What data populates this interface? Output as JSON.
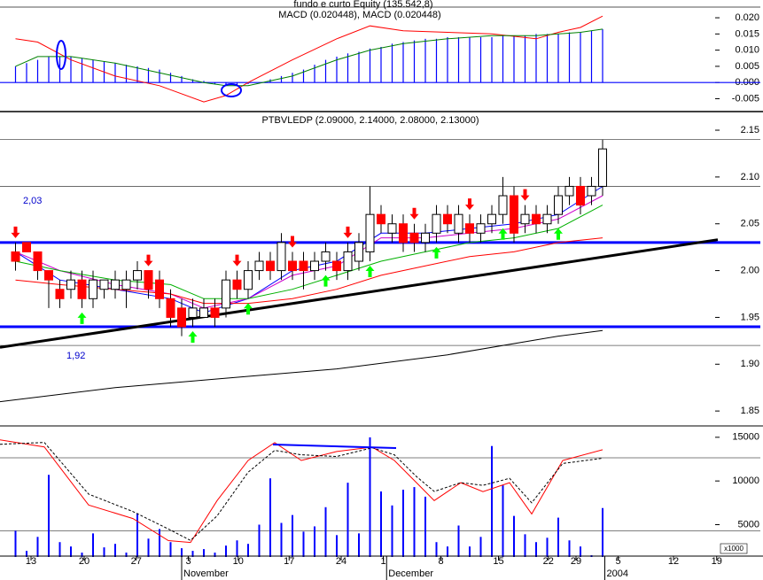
{
  "chart_data": [
    {
      "type": "macd",
      "title": "fundo e curto Equity (135.542,8)",
      "subtitle": "MACD (0.020448), MACD (0.020448)",
      "ylim": [
        -0.0087,
        0.0233
      ],
      "yticks": [
        {
          "value": 0.02,
          "label": "0.020"
        },
        0.015,
        {
          "value": 0.01,
          "label": "0.010"
        },
        0.005,
        {
          "value": 0,
          "label": "0.000"
        },
        -0.005
      ],
      "color": "#0000ff",
      "x": [
        1,
        2,
        3,
        4,
        5,
        6,
        7,
        8,
        9,
        10,
        11,
        12,
        13,
        14,
        15,
        16,
        17,
        18,
        19,
        20,
        21,
        22,
        23,
        24,
        25,
        26,
        27,
        28,
        29,
        30,
        31,
        32,
        33,
        34,
        35,
        36,
        37,
        38,
        39,
        40,
        41,
        42,
        43,
        44,
        45,
        46,
        47,
        48,
        49,
        50,
        51,
        52,
        53,
        54
      ],
      "values": [
        0.005,
        0.006,
        0.007,
        0.008,
        0.008,
        0.008,
        0.0075,
        0.007,
        0.0065,
        0.006,
        0.0055,
        0.005,
        0.0045,
        0.004,
        0.003,
        0.002,
        0.001,
        0.0005,
        -0.0005,
        -0.001,
        -0.001,
        -0.0005,
        0,
        0.001,
        0.002,
        0.003,
        0.004,
        0.0055,
        0.007,
        0.008,
        0.009,
        0.0095,
        0.0105,
        0.011,
        0.012,
        0.0125,
        0.013,
        0.0135,
        0.0135,
        0.014,
        0.014,
        0.014,
        0.014,
        0.014,
        0.0145,
        0.0145,
        0.0145,
        0.015,
        0.015,
        0.015,
        0.0155,
        0.0155,
        0.016,
        0.0165
      ],
      "series": [
        {
          "color": "#ff0000",
          "x": [
            1,
            3,
            6,
            10,
            14,
            18,
            20,
            22,
            26,
            30,
            33,
            36,
            40,
            44,
            48,
            50,
            52,
            54
          ],
          "values": [
            0.0135,
            0.0125,
            0.007,
            0.002,
            -0.001,
            -0.006,
            -0.004,
            0,
            0.007,
            0.0135,
            0.0175,
            0.016,
            0.0155,
            0.015,
            0.0135,
            0.0155,
            0.017,
            0.0205
          ]
        },
        {
          "color": "#008000",
          "x": [
            1,
            3,
            6,
            10,
            14,
            18,
            20,
            22,
            26,
            30,
            33,
            36,
            40,
            44,
            48,
            50,
            52,
            54
          ],
          "values": [
            0.005,
            0.008,
            0.008,
            0.006,
            0.003,
            0,
            -0.001,
            -0.001,
            0.002,
            0.007,
            0.01,
            0.012,
            0.0135,
            0.0145,
            0.0145,
            0.015,
            0.0155,
            0.0165
          ]
        }
      ]
    },
    {
      "type": "candlestick",
      "title": "PTBVLEDP (2.09000, 2.14000, 2.08000, 2.13000)",
      "ylim": [
        1.835,
        2.168
      ],
      "yticks": [
        2.15,
        {
          "value": 2.1,
          "label": "2.10"
        },
        2.05,
        {
          "value": 2.0,
          "label": "2.00"
        },
        1.95,
        {
          "value": 1.9,
          "label": "1.90"
        },
        1.85
      ],
      "x": [
        1,
        2,
        3,
        4,
        5,
        6,
        7,
        8,
        9,
        10,
        11,
        12,
        13,
        14,
        15,
        16,
        17,
        18,
        19,
        20,
        21,
        22,
        23,
        24,
        25,
        26,
        27,
        28,
        29,
        30,
        31,
        32,
        33,
        34,
        35,
        36,
        37,
        38,
        39,
        40,
        41,
        42,
        43,
        44,
        45,
        46,
        47,
        48,
        49,
        50,
        51,
        52,
        53,
        54
      ],
      "open": [
        2.02,
        2.03,
        2.02,
        2.0,
        1.98,
        1.98,
        1.99,
        1.97,
        1.98,
        1.98,
        1.98,
        1.99,
        2.0,
        1.99,
        1.97,
        1.96,
        1.95,
        1.95,
        1.96,
        1.96,
        1.99,
        1.98,
        2.0,
        2.01,
        2.0,
        2.01,
        2.01,
        2.0,
        2.01,
        2.01,
        2.0,
        2.01,
        2.02,
        2.06,
        2.04,
        2.05,
        2.04,
        2.03,
        2.04,
        2.06,
        2.04,
        2.05,
        2.04,
        2.05,
        2.06,
        2.08,
        2.05,
        2.06,
        2.05,
        2.06,
        2.08,
        2.09,
        2.08,
        2.09
      ],
      "high": [
        2.03,
        2.03,
        2.02,
        2.0,
        1.99,
        2.0,
        2.0,
        2.0,
        1.99,
        2.0,
        2.0,
        2.01,
        2.0,
        2.0,
        1.98,
        1.97,
        1.97,
        1.97,
        1.97,
        2.0,
        2.0,
        2.01,
        2.02,
        2.02,
        2.04,
        2.02,
        2.02,
        2.02,
        2.03,
        2.02,
        2.03,
        2.04,
        2.09,
        2.07,
        2.06,
        2.06,
        2.05,
        2.05,
        2.07,
        2.07,
        2.07,
        2.06,
        2.06,
        2.07,
        2.1,
        2.09,
        2.07,
        2.07,
        2.07,
        2.09,
        2.1,
        2.1,
        2.1,
        2.14
      ],
      "low": [
        2.0,
        2.02,
        1.99,
        1.96,
        1.96,
        1.97,
        1.96,
        1.96,
        1.97,
        1.97,
        1.96,
        1.98,
        1.97,
        1.96,
        1.94,
        1.93,
        1.94,
        1.95,
        1.94,
        1.95,
        1.97,
        1.97,
        1.99,
        1.99,
        1.99,
        1.99,
        1.98,
        1.99,
        2.0,
        1.99,
        1.99,
        2.0,
        2.01,
        2.04,
        2.03,
        2.02,
        2.02,
        2.02,
        2.03,
        2.04,
        2.03,
        2.03,
        2.03,
        2.04,
        2.05,
        2.03,
        2.04,
        2.04,
        2.04,
        2.05,
        2.07,
        2.06,
        2.07,
        2.08
      ],
      "close": [
        2.01,
        2.02,
        2.0,
        1.99,
        1.97,
        1.99,
        1.97,
        1.99,
        1.99,
        1.99,
        1.99,
        2.0,
        1.98,
        1.97,
        1.95,
        1.94,
        1.96,
        1.96,
        1.95,
        1.99,
        1.98,
        2.0,
        2.01,
        2.0,
        2.03,
        2.0,
        2.0,
        2.01,
        2.02,
        2.0,
        2.02,
        2.03,
        2.06,
        2.05,
        2.05,
        2.03,
        2.03,
        2.04,
        2.06,
        2.05,
        2.06,
        2.04,
        2.05,
        2.06,
        2.08,
        2.04,
        2.06,
        2.05,
        2.06,
        2.08,
        2.09,
        2.07,
        2.09,
        2.13
      ],
      "up_color": "#ffffff",
      "down_color": "#ff0000",
      "series": [
        {
          "color": "#0000ff",
          "x": [
            1,
            5,
            10,
            15,
            18,
            22,
            26,
            30,
            34,
            38,
            42,
            46,
            50,
            54
          ],
          "values": [
            2.02,
            1.99,
            1.98,
            1.97,
            1.955,
            1.97,
            2.0,
            2.01,
            2.04,
            2.04,
            2.045,
            2.05,
            2.06,
            2.09
          ]
        },
        {
          "color": "#cc00cc",
          "x": [
            1,
            5,
            10,
            15,
            18,
            22,
            26,
            30,
            34,
            38,
            42,
            46,
            50,
            54
          ],
          "values": [
            2.02,
            2.0,
            1.985,
            1.975,
            1.96,
            1.97,
            1.995,
            2.005,
            2.035,
            2.035,
            2.04,
            2.045,
            2.055,
            2.08
          ]
        },
        {
          "color": "#00b000",
          "x": [
            1,
            5,
            10,
            15,
            18,
            22,
            26,
            30,
            34,
            38,
            42,
            46,
            50,
            54
          ],
          "values": [
            2.01,
            2.0,
            1.99,
            1.985,
            1.97,
            1.97,
            1.98,
            1.995,
            2.01,
            2.02,
            2.03,
            2.035,
            2.045,
            2.07
          ]
        },
        {
          "color": "#ff0000",
          "x": [
            1,
            5,
            10,
            15,
            18,
            22,
            26,
            30,
            34,
            38,
            42,
            46,
            50,
            54
          ],
          "values": [
            1.99,
            1.985,
            1.98,
            1.975,
            1.965,
            1.965,
            1.97,
            1.98,
            1.995,
            2.005,
            2.015,
            2.02,
            2.03,
            2.035
          ]
        },
        {
          "color": "#000000",
          "x": [
            -0.4,
            10,
            20,
            30,
            40,
            50,
            54
          ],
          "values": [
            1.86,
            1.875,
            1.885,
            1.895,
            1.91,
            1.93,
            1.936
          ]
        }
      ],
      "hlines": [
        2.03,
        1.94
      ],
      "hline_color": "#0000ff",
      "ref_lines": [
        2.14,
        2.09,
        1.92
      ],
      "trendline": {
        "x": [
          -0.4,
          64.4
        ],
        "values": [
          1.918,
          2.033
        ]
      },
      "sell_signals": [
        1,
        13,
        21,
        26,
        31,
        37,
        42,
        47
      ],
      "sell_color": "#ff0000",
      "buy_signals": [
        7,
        17,
        22,
        29,
        33,
        39,
        45,
        50
      ],
      "buy_color": "#00ff00",
      "annotations": [
        "2,03",
        "1,92"
      ]
    },
    {
      "type": "bar",
      "color": "#0000ff",
      "ylim": [
        1300,
        16300
      ],
      "yticks": [
        15000,
        10000,
        5000
      ],
      "ref_lines": [
        12650,
        4300
      ],
      "x": [
        1,
        2,
        3,
        4,
        5,
        6,
        7,
        8,
        9,
        10,
        11,
        12,
        13,
        14,
        15,
        16,
        17,
        18,
        19,
        20,
        21,
        22,
        23,
        24,
        25,
        26,
        27,
        28,
        29,
        30,
        31,
        32,
        33,
        34,
        35,
        36,
        37,
        38,
        39,
        40,
        41,
        42,
        43,
        44,
        45,
        46,
        47,
        48,
        49,
        50,
        51,
        52,
        53,
        54
      ],
      "values": [
        4300,
        2000,
        3600,
        10700,
        3000,
        2500,
        1800,
        4000,
        2400,
        2800,
        1800,
        6300,
        3400,
        4500,
        3000,
        2300,
        2000,
        2200,
        1800,
        2600,
        3200,
        2800,
        5000,
        10300,
        5200,
        6100,
        4200,
        4800,
        7000,
        3800,
        9800,
        4000,
        15000,
        8800,
        7200,
        9000,
        9300,
        8200,
        3000,
        2500,
        4900,
        2500,
        3600,
        14000,
        9500,
        6000,
        3900,
        3000,
        3500,
        5800,
        3200,
        2500,
        1500,
        6900
      ],
      "series": [
        {
          "color": "#ff0000",
          "x": [
            -0.4,
            3.6,
            7.6,
            11.6,
            14.8,
            16.8,
            19.2,
            22,
            24.4,
            26.8,
            30,
            33.2,
            35.2,
            37.2,
            38.8,
            41.2,
            43.2,
            45.6,
            47.6,
            50.4,
            54
          ],
          "values": [
            14700,
            13900,
            7250,
            5700,
            3170,
            2960,
            7760,
            12350,
            14390,
            12350,
            13370,
            13880,
            12350,
            9800,
            7760,
            9800,
            8780,
            9800,
            6230,
            12350,
            13570
          ]
        },
        {
          "color": "#000000",
          "dash": true,
          "x": [
            -0.4,
            3.6,
            7.6,
            11.6,
            14.8,
            16.8,
            19.2,
            22,
            24.4,
            26.8,
            30,
            33.2,
            35.2,
            37.2,
            38.8,
            41.2,
            43.2,
            45.6,
            47.6,
            50.4,
            54
          ],
          "values": [
            14200,
            14400,
            8500,
            6500,
            4500,
            3200,
            6000,
            11000,
            13500,
            13000,
            12800,
            13800,
            13000,
            10500,
            8800,
            9800,
            9500,
            10300,
            7500,
            12000,
            12600
          ]
        }
      ],
      "unit_label": "x1000",
      "xlim": [
        -0.4,
        64.4
      ],
      "xticks": [
        {
          "value": 2.4,
          "label": "13"
        },
        {
          "value": 7.2,
          "label": "20"
        },
        {
          "value": 11.9,
          "label": "27"
        },
        {
          "value": 16.6,
          "label": "3"
        },
        {
          "value": 21.1,
          "label": "10"
        },
        {
          "value": 25.7,
          "label": "17"
        },
        {
          "value": 30.4,
          "label": "24"
        },
        {
          "value": 34.2,
          "label": "1"
        },
        {
          "value": 39.4,
          "label": "8"
        },
        {
          "value": 44.6,
          "label": "15"
        },
        {
          "value": 49.1,
          "label": "22"
        },
        {
          "value": 51.6,
          "label": "29"
        },
        {
          "value": 55.4,
          "label": "5"
        },
        {
          "value": 60.4,
          "label": "12"
        },
        {
          "value": 64.3,
          "label": "19"
        }
      ],
      "periods": [
        {
          "value": 16,
          "label": "November"
        },
        {
          "value": 34.5,
          "label": "December"
        },
        {
          "value": 54.2,
          "label": "2004"
        }
      ]
    }
  ]
}
